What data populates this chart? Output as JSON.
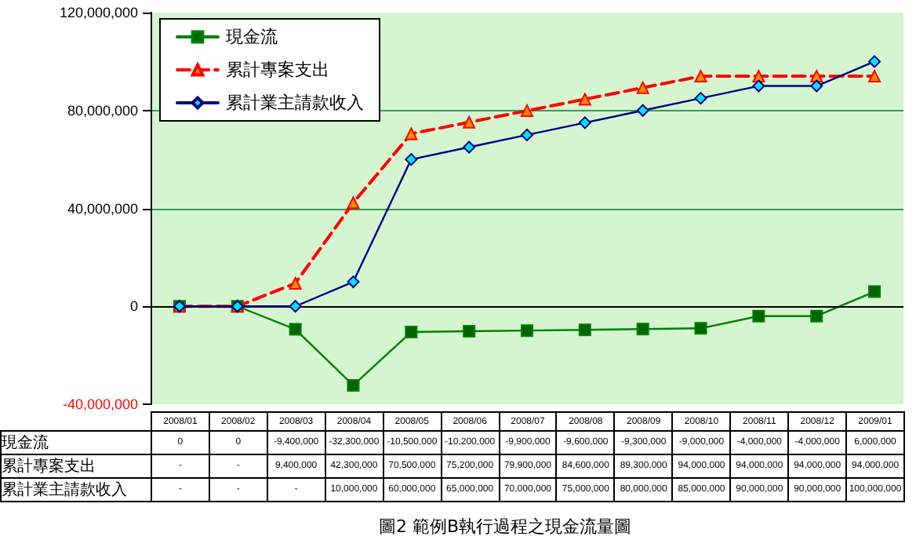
{
  "chart_data": {
    "type": "line",
    "title": "圖2 範例B執行過程之現金流量圖",
    "categories": [
      "2008/01",
      "2008/02",
      "2008/03",
      "2008/04",
      "2008/05",
      "2008/06",
      "2008/07",
      "2008/08",
      "2008/09",
      "2008/10",
      "2008/11",
      "2008/12",
      "2009/01"
    ],
    "series": [
      {
        "name": "現金流",
        "color": "#008000",
        "marker": "square",
        "line_style": "solid",
        "values": [
          0,
          0,
          -9400000,
          -32300000,
          -10500000,
          -10200000,
          -9900000,
          -9600000,
          -9300000,
          -9000000,
          -4000000,
          -4000000,
          6000000
        ],
        "value_labels": [
          "0",
          "0",
          "-9,400,000",
          "-32,300,000",
          "-10,500,000",
          "-10,200,000",
          "-9,900,000",
          "-9,600,000",
          "-9,300,000",
          "-9,000,000",
          "-4,000,000",
          "-4,000,000",
          "6,000,000"
        ]
      },
      {
        "name": "累計專案支出",
        "color": "#ff0000",
        "marker": "triangle",
        "line_style": "dashed",
        "values": [
          0,
          0,
          9400000,
          42300000,
          70500000,
          75200000,
          79900000,
          84600000,
          89300000,
          94000000,
          94000000,
          94000000,
          94000000
        ],
        "value_labels": [
          "-",
          "-",
          "9,400,000",
          "42,300,000",
          "70,500,000",
          "75,200,000",
          "79,900,000",
          "84,600,000",
          "89,300,000",
          "94,000,000",
          "94,000,000",
          "94,000,000",
          "94,000,000"
        ]
      },
      {
        "name": "累計業主請款收入",
        "color": "#000080",
        "marker": "diamond",
        "line_style": "solid",
        "values": [
          0,
          0,
          0,
          10000000,
          60000000,
          65000000,
          70000000,
          75000000,
          80000000,
          85000000,
          90000000,
          90000000,
          100000000
        ],
        "value_labels": [
          "-",
          "-",
          "-",
          "10,000,000",
          "60,000,000",
          "65,000,000",
          "70,000,000",
          "75,000,000",
          "80,000,000",
          "85,000,000",
          "90,000,000",
          "90,000,000",
          "100,000,000"
        ]
      }
    ],
    "ylim": [
      -40000000,
      120000000
    ],
    "yticks": [
      {
        "value": -40000000,
        "label": "-40,000,000"
      },
      0,
      {
        "value": 40000000,
        "label": "40,000,000"
      },
      {
        "value": 80000000,
        "label": "80,000,000"
      },
      {
        "value": 120000000,
        "label": "120,000,000"
      }
    ],
    "grid": "y",
    "legend": "top left"
  }
}
